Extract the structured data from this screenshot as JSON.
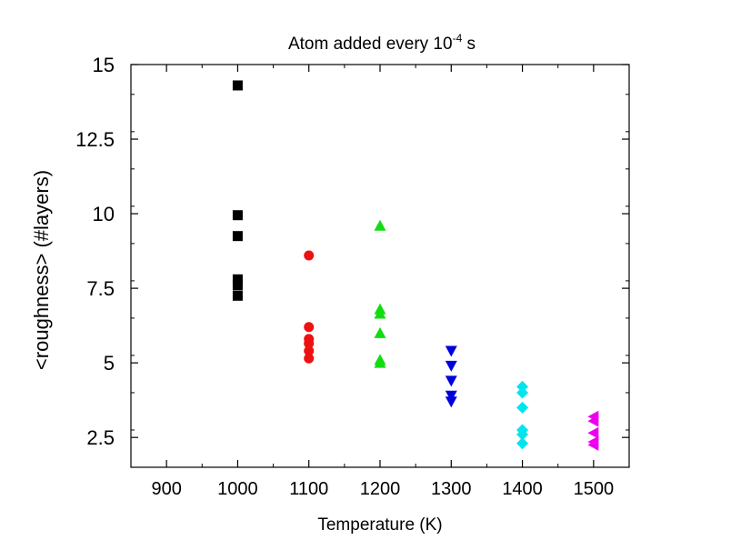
{
  "chart_data": {
    "type": "scatter",
    "title": {
      "prefix": "Atom added every 10",
      "superscript": "-4",
      "suffix": " s"
    },
    "xlabel": "Temperature (K)",
    "ylabel": "<roughness> (#layers)",
    "xlim": [
      850,
      1550
    ],
    "ylim": [
      1.5,
      15
    ],
    "x_ticks": [
      900,
      1000,
      1100,
      1200,
      1300,
      1400,
      1500
    ],
    "x_tick_labels": [
      "900",
      "1000",
      "1100",
      "1200",
      "1300",
      "1400",
      "1500"
    ],
    "y_ticks": [
      2.5,
      5,
      7.5,
      10,
      12.5,
      15
    ],
    "y_tick_labels": [
      "2.5",
      "5",
      "7.5",
      "10",
      "12.5",
      "15"
    ],
    "grid": false,
    "legend": "none",
    "series": [
      {
        "marker": "square",
        "color": "#000000",
        "points": [
          [
            1000,
            14.3
          ],
          [
            1000,
            9.95
          ],
          [
            1000,
            9.25
          ],
          [
            1000,
            7.8
          ],
          [
            1000,
            7.6
          ],
          [
            1000,
            7.25
          ]
        ]
      },
      {
        "marker": "circle",
        "color": "#ee1111",
        "points": [
          [
            1100,
            8.6
          ],
          [
            1100,
            6.2
          ],
          [
            1100,
            5.8
          ],
          [
            1100,
            5.65
          ],
          [
            1100,
            5.4
          ],
          [
            1100,
            5.15
          ]
        ]
      },
      {
        "marker": "triangle-up",
        "color": "#11dd11",
        "points": [
          [
            1200,
            9.6
          ],
          [
            1200,
            6.8
          ],
          [
            1200,
            6.65
          ],
          [
            1200,
            6.0
          ],
          [
            1200,
            5.1
          ],
          [
            1200,
            5.0
          ]
        ]
      },
      {
        "marker": "triangle-down",
        "color": "#0000dd",
        "points": [
          [
            1300,
            5.4
          ],
          [
            1300,
            4.9
          ],
          [
            1300,
            4.4
          ],
          [
            1300,
            3.9
          ],
          [
            1300,
            3.7
          ]
        ]
      },
      {
        "marker": "diamond",
        "color": "#00e5ee",
        "points": [
          [
            1400,
            4.2
          ],
          [
            1400,
            4.0
          ],
          [
            1400,
            3.5
          ],
          [
            1400,
            2.75
          ],
          [
            1400,
            2.6
          ],
          [
            1400,
            2.3
          ]
        ]
      },
      {
        "marker": "triangle-left",
        "color": "#ee00ee",
        "points": [
          [
            1500,
            3.2
          ],
          [
            1500,
            3.05
          ],
          [
            1500,
            2.65
          ],
          [
            1500,
            2.35
          ],
          [
            1500,
            2.25
          ]
        ]
      }
    ]
  }
}
